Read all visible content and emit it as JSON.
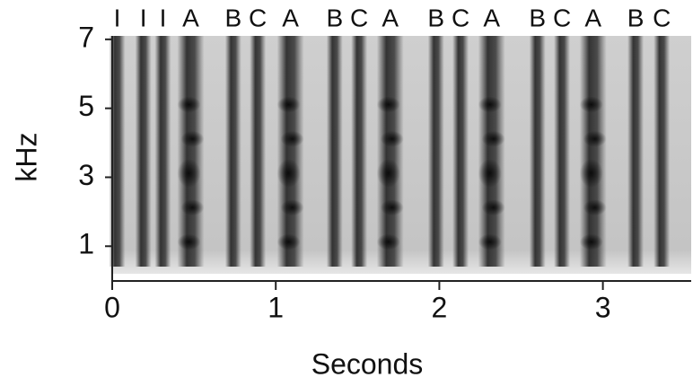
{
  "chart_data": {
    "type": "spectrogram",
    "x_label": "Seconds",
    "y_label": "kHz",
    "xlim": [
      0,
      3.54
    ],
    "xticks": [
      0,
      1,
      2,
      3
    ],
    "ylim": [
      0.2,
      7.1
    ],
    "yticks": [
      1,
      3,
      5,
      7
    ],
    "syllables": [
      {
        "label": "I",
        "time": 0.03
      },
      {
        "label": "I",
        "time": 0.19
      },
      {
        "label": "I",
        "time": 0.31
      },
      {
        "label": "A",
        "time": 0.48
      },
      {
        "label": "B",
        "time": 0.74
      },
      {
        "label": "C",
        "time": 0.89
      },
      {
        "label": "A",
        "time": 1.09
      },
      {
        "label": "B",
        "time": 1.36
      },
      {
        "label": "C",
        "time": 1.51
      },
      {
        "label": "A",
        "time": 1.7
      },
      {
        "label": "B",
        "time": 1.98
      },
      {
        "label": "C",
        "time": 2.13
      },
      {
        "label": "A",
        "time": 2.32
      },
      {
        "label": "B",
        "time": 2.6
      },
      {
        "label": "C",
        "time": 2.75
      },
      {
        "label": "A",
        "time": 2.94
      },
      {
        "label": "B",
        "time": 3.2
      },
      {
        "label": "C",
        "time": 3.36
      }
    ]
  }
}
